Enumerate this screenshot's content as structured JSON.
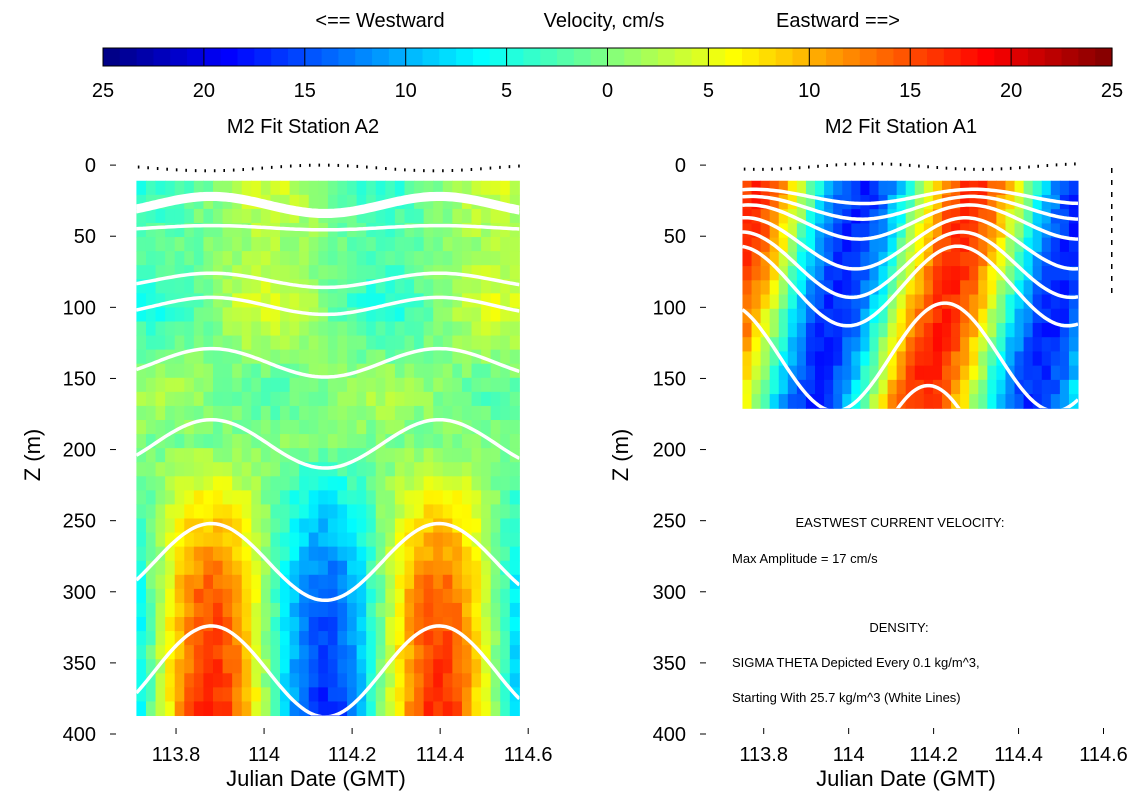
{
  "colorbar": {
    "west_label": "<== Westward",
    "center_label": "Velocity, cm/s",
    "east_label": "Eastward ==>",
    "ticks": [
      "25",
      "20",
      "15",
      "10",
      "5",
      "0",
      "5",
      "10",
      "15",
      "20",
      "25"
    ],
    "range": [
      -25,
      25
    ],
    "colormap": "jet"
  },
  "annotations": {
    "line1": "EASTWEST CURRENT VELOCITY:",
    "line2": "Max Amplitude = 17 cm/s",
    "line3": "DENSITY:",
    "line4": "SIGMA THETA Depicted Every 0.1 kg/m^3,",
    "line5": "Starting With 25.7 kg/m^3 (White Lines)"
  },
  "chart_data": [
    {
      "type": "heatmap",
      "title": "M2 Fit  Station A2",
      "xlabel": "Julian Date (GMT)",
      "ylabel": "Z (m)",
      "xlim": [
        113.65,
        114.62
      ],
      "ylim": [
        400,
        -5
      ],
      "xticks": [
        113.8,
        114,
        114.2,
        114.4,
        114.6
      ],
      "xtick_labels": [
        "113.8",
        "114",
        "114.2",
        "114.4",
        "114.6"
      ],
      "yticks": [
        0,
        50,
        100,
        150,
        200,
        250,
        300,
        350,
        400
      ],
      "ytick_labels": [
        "0",
        "50",
        "100",
        "150",
        "200",
        "250",
        "300",
        "350",
        "400"
      ],
      "grid": false,
      "field": {
        "x_range": [
          113.71,
          114.58
        ],
        "depth_range": [
          11,
          387
        ],
        "tidal_period_days": 0.5175,
        "max_amplitude_cm_s": 17,
        "phase_ref_day": 113.88,
        "surface_phase_shift": 0.13,
        "depth_structure": [
          [
            11,
            0.25
          ],
          [
            60,
            0.1
          ],
          [
            100,
            0.3
          ],
          [
            160,
            -0.15
          ],
          [
            200,
            0.05
          ],
          [
            240,
            0.45
          ],
          [
            300,
            0.85
          ],
          [
            387,
            1.0
          ]
        ],
        "mode1_sign_change_depth": 220,
        "noise_cm_s": 1.5
      },
      "density_lines": [
        {
          "depth_mean": 26,
          "amplitude": 6,
          "phase_ref": 113.88
        },
        {
          "depth_mean": 28,
          "amplitude": 6,
          "phase_ref": 113.88
        },
        {
          "depth_mean": 30,
          "amplitude": 6,
          "phase_ref": 113.88
        },
        {
          "depth_mean": 44,
          "amplitude": 1.5,
          "phase_ref": 113.88
        },
        {
          "depth_mean": 81,
          "amplitude": 5,
          "phase_ref": 113.88
        },
        {
          "depth_mean": 99,
          "amplitude": 6,
          "phase_ref": 113.88
        },
        {
          "depth_mean": 139,
          "amplitude": 10,
          "phase_ref": 113.88
        },
        {
          "depth_mean": 196,
          "amplitude": 17,
          "phase_ref": 113.88
        },
        {
          "depth_mean": 279,
          "amplitude": 27,
          "phase_ref": 113.88
        },
        {
          "depth_mean": 356,
          "amplitude": 32,
          "phase_ref": 113.88
        }
      ],
      "surface_dots": {
        "depth_mean": 2,
        "amplitude": 2,
        "phase_ref": 114.13
      }
    },
    {
      "type": "heatmap",
      "title": "M2 Fit  Station A1",
      "xlabel": "Julian Date (GMT)",
      "ylabel": "Z (m)",
      "xlim": [
        113.65,
        114.62
      ],
      "ylim": [
        400,
        -5
      ],
      "xticks": [
        113.8,
        114,
        114.2,
        114.4,
        114.6
      ],
      "xtick_labels": [
        "113.8",
        "114",
        "114.2",
        "114.4",
        "114.6"
      ],
      "yticks": [
        0,
        50,
        100,
        150,
        200,
        250,
        300,
        350,
        400
      ],
      "ytick_labels": [
        "0",
        "50",
        "100",
        "150",
        "200",
        "250",
        "300",
        "350",
        "400"
      ],
      "grid": false,
      "field": {
        "x_range": [
          113.75,
          114.54
        ],
        "depth_range": [
          11,
          171
        ],
        "tidal_period_days": 0.5175,
        "max_amplitude_cm_s": 17,
        "phase_ref_day": 113.79,
        "phase_tilt_days_per_m": -0.0008,
        "noise_cm_s": 1.5
      },
      "density_lines": [
        {
          "depth_mean": 22,
          "amplitude": 5,
          "phase_ref": 113.79,
          "phase_tilt": -0.0006
        },
        {
          "depth_mean": 30,
          "amplitude": 8,
          "phase_ref": 113.79,
          "phase_tilt": -0.0006
        },
        {
          "depth_mean": 40,
          "amplitude": 12,
          "phase_ref": 113.79,
          "phase_tilt": -0.0006
        },
        {
          "depth_mean": 55,
          "amplitude": 18,
          "phase_ref": 113.79,
          "phase_tilt": -0.0006
        },
        {
          "depth_mean": 70,
          "amplitude": 23,
          "phase_ref": 113.79,
          "phase_tilt": -0.0006
        },
        {
          "depth_mean": 85,
          "amplitude": 28,
          "phase_ref": 113.79,
          "phase_tilt": -0.0006
        },
        {
          "depth_mean": 135,
          "amplitude": 38,
          "phase_ref": 113.79,
          "phase_tilt": -0.0006
        },
        {
          "depth_mean": 200,
          "amplitude": 45,
          "phase_ref": 113.79,
          "phase_tilt": -0.0006
        }
      ],
      "surface_dots": {
        "depth_mean": 1,
        "amplitude": 2,
        "phase_ref": 114.05
      }
    }
  ]
}
